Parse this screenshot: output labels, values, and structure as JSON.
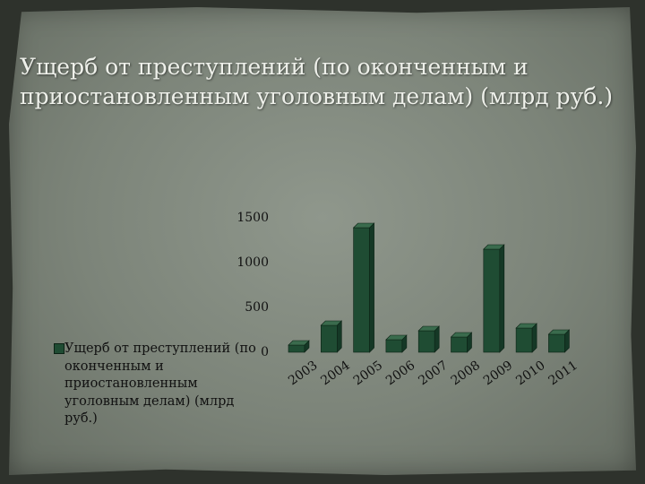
{
  "title": "Ущерб от преступлений (по оконченным и приостановленным уголовным делам) (млрд руб.)",
  "legend": {
    "label": "Ущерб от преступлений (по оконченным и приостановленным уголовным делам) (млрд руб.)"
  },
  "colors": {
    "bar_front": "#1f4c33",
    "bar_side": "#153826",
    "bar_top": "#3a6b4d",
    "slide_bg": "#7c8479"
  },
  "chart_data": {
    "type": "bar",
    "categories": [
      "2003",
      "2004",
      "2005",
      "2006",
      "2007",
      "2008",
      "2009",
      "2010",
      "2011"
    ],
    "series": [
      {
        "name": "Ущерб от преступлений (по оконченным и приостановленным уголовным делам) (млрд руб.)",
        "values": [
          80,
          300,
          1390,
          140,
          240,
          170,
          1150,
          270,
          200
        ]
      }
    ],
    "yticks": [
      0,
      500,
      1000,
      1500
    ],
    "ylim": [
      0,
      1500
    ],
    "grid": false,
    "legend_position": "left"
  }
}
